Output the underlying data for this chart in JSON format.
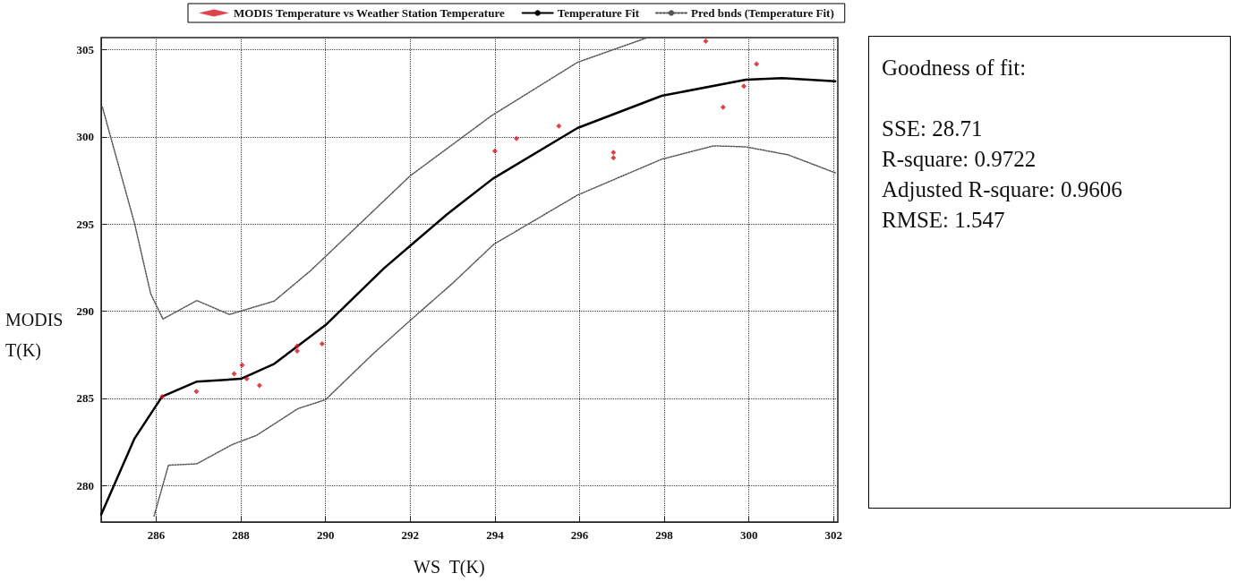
{
  "chart_data": [
    {
      "type": "scatter",
      "xlabel": "WS  T(K)",
      "ylabel": "MODIS T(K)",
      "xlim": [
        284.7,
        302.1
      ],
      "ylim": [
        277.9,
        305.7
      ],
      "xticks": [
        286,
        288,
        290,
        292,
        294,
        296,
        298,
        300,
        302
      ],
      "yticks": [
        280,
        285,
        290,
        295,
        300,
        305
      ],
      "grid": true,
      "legend": "top",
      "marker": "diamond",
      "series": [
        {
          "name": "MODIS Temperature vs Weather Station Temperature",
          "color": "#d7141e",
          "x": [
            286.14,
            286.95,
            287.84,
            288.03,
            288.14,
            288.44,
            289.33,
            289.33,
            289.92,
            294.0,
            294.51,
            295.51,
            296.8,
            296.8,
            298.98,
            299.39,
            299.88,
            300.18
          ],
          "values": [
            285.1,
            285.39,
            286.41,
            286.9,
            286.12,
            285.73,
            288.0,
            287.72,
            288.13,
            299.19,
            299.9,
            300.62,
            299.11,
            298.8,
            305.5,
            301.7,
            302.91,
            304.18
          ]
        },
        {
          "name": "Temperature Fit",
          "type": "line",
          "color": "#000000",
          "line_style": "solid",
          "marker": "none",
          "x": [
            284.7,
            285.49,
            286.14,
            286.95,
            288.0,
            288.79,
            290.0,
            291.38,
            292.0,
            292.86,
            293.95,
            295.95,
            297.94,
            299.93,
            300.79,
            302.04
          ],
          "values": [
            278.33,
            282.7,
            285.1,
            285.95,
            286.12,
            286.98,
            289.2,
            292.46,
            293.75,
            295.54,
            297.6,
            300.51,
            302.36,
            303.29,
            303.37,
            303.2
          ]
        },
        {
          "name": "Pred bnds (Temperature Fit)",
          "type": "line",
          "color": "#555555",
          "line_style": "dotted",
          "marker": "none",
          "x": [
            284.73,
            285.49,
            285.87,
            286.16,
            286.96,
            287.73,
            288.79,
            289.63,
            290.0,
            292.0,
            293.91,
            295.95,
            297.6
          ],
          "values": [
            301.71,
            295.03,
            291.0,
            289.55,
            290.61,
            289.81,
            290.58,
            292.29,
            293.14,
            297.77,
            301.2,
            304.28,
            305.7
          ]
        },
        {
          "type": "line",
          "color": "#555555",
          "line_style": "dotted",
          "marker": "none",
          "x": [
            285.95,
            286.29,
            286.96,
            287.8,
            288.37,
            289.35,
            290.0,
            291.1,
            292.0,
            293.0,
            293.97,
            295.95,
            297.94,
            299.17,
            299.93,
            300.93,
            302.04
          ],
          "values": [
            278.24,
            281.16,
            281.24,
            282.35,
            282.87,
            284.41,
            284.92,
            287.5,
            289.47,
            291.6,
            293.83,
            296.66,
            298.72,
            299.49,
            299.43,
            298.97,
            297.94
          ]
        }
      ]
    },
    {
      "type": "other",
      "title": "Goodness of fit:",
      "annotations": [
        "SSE: 28.71",
        "R-square: 0.9722",
        "Adjusted R-square: 0.9606",
        "RMSE: 1.547"
      ]
    }
  ]
}
